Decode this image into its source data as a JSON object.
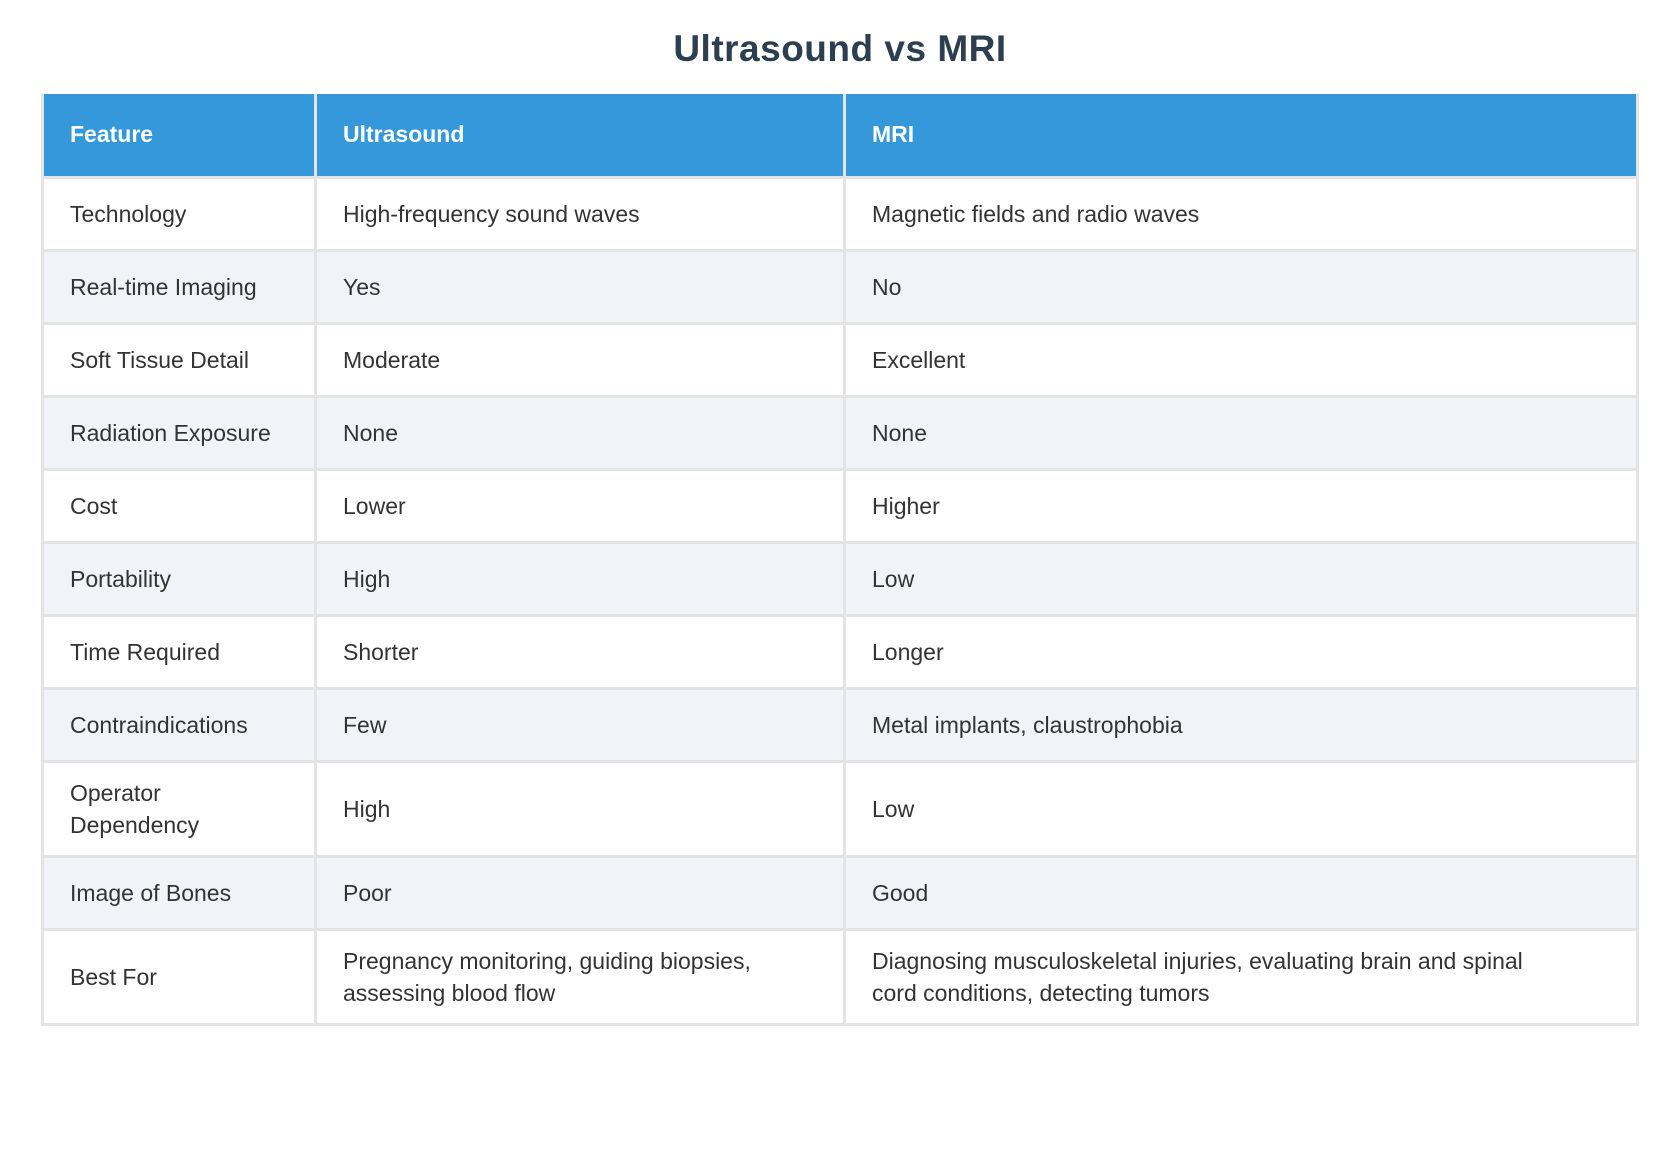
{
  "page": {
    "title": "Ultrasound vs MRI"
  },
  "table": {
    "columns": [
      {
        "label": "Feature"
      },
      {
        "label": "Ultrasound"
      },
      {
        "label": "MRI"
      }
    ],
    "rows": [
      [
        "Technology",
        "High-frequency sound waves",
        "Magnetic fields and radio waves"
      ],
      [
        "Real-time Imaging",
        "Yes",
        "No"
      ],
      [
        "Soft Tissue Detail",
        "Moderate",
        "Excellent"
      ],
      [
        "Radiation Exposure",
        "None",
        "None"
      ],
      [
        "Cost",
        "Lower",
        "Higher"
      ],
      [
        "Portability",
        "High",
        "Low"
      ],
      [
        "Time Required",
        "Shorter",
        "Longer"
      ],
      [
        "Contraindications",
        "Few",
        "Metal implants, claustrophobia"
      ],
      [
        "Operator Dependency",
        "High",
        "Low"
      ],
      [
        "Image of Bones",
        "Poor",
        "Good"
      ],
      [
        "Best For",
        "Pregnancy monitoring, guiding biopsies, assessing blood flow",
        "Diagnosing musculoskeletal injuries, evaluating brain and spinal cord conditions, detecting tumors"
      ]
    ]
  },
  "colors": {
    "header_bg": "#3498db",
    "header_text": "#ffffff",
    "row_bg": "#ffffff",
    "row_alt_bg": "#f0f4f8",
    "border": "#e4e4e4",
    "title_text": "#2c3e50",
    "body_text": "#333333"
  }
}
